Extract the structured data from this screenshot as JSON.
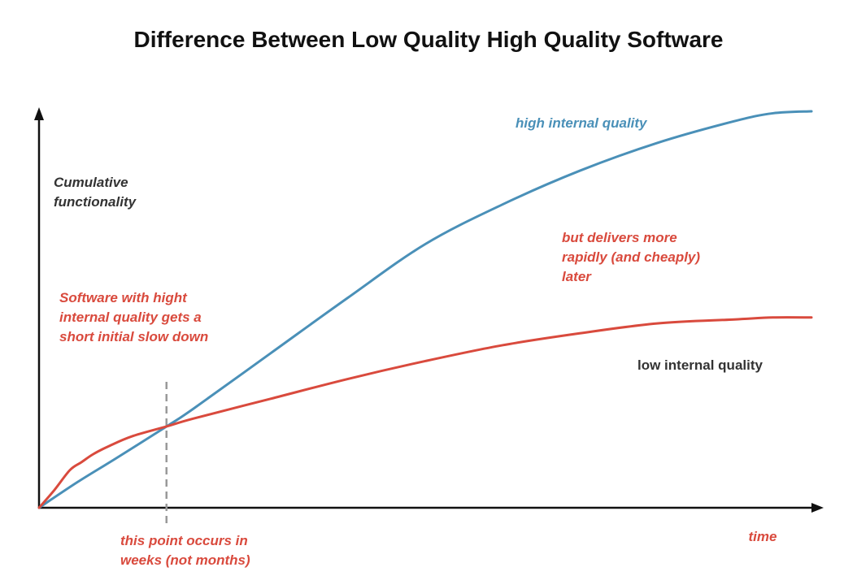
{
  "chart_data": {
    "type": "line",
    "title": "Difference Between Low Quality High Quality Software",
    "xlabel": "time",
    "ylabel_lines": [
      "Cumulative",
      "functionality"
    ],
    "xlim": [
      0,
      100
    ],
    "ylim": [
      0,
      100
    ],
    "grid": false,
    "legend": "none",
    "colors": {
      "high": "#4a90b8",
      "low": "#d94a3d",
      "axis": "#111111",
      "dashed": "#999999",
      "title": "#111111",
      "label": "#333333"
    },
    "series": [
      {
        "key": "high",
        "x": [
          0,
          5,
          10,
          16.5,
          20,
          30,
          40,
          50,
          60,
          70,
          80,
          90,
          95,
          100
        ],
        "y": [
          0,
          6.5,
          12.5,
          20.5,
          25,
          39,
          53,
          66.5,
          76.5,
          85,
          92,
          97.5,
          99.5,
          100
        ]
      },
      {
        "key": "low",
        "x": [
          0,
          2,
          4,
          5.5,
          7,
          9,
          12,
          16.5,
          20,
          30,
          40,
          50,
          60,
          70,
          80,
          90,
          95,
          100
        ],
        "y": [
          0,
          4.5,
          9.5,
          11.5,
          13.5,
          15.5,
          18,
          20.5,
          22.5,
          27.5,
          32.5,
          37,
          41,
          44,
          46.5,
          47.5,
          48,
          48
        ]
      }
    ],
    "crossover_x": 16.5,
    "annotations": {
      "series_high_label": "high internal quality",
      "series_low_label": "low internal quality",
      "slowdown_note": [
        "Software with hight",
        "internal quality gets a",
        "short initial slow down"
      ],
      "delivers_note": [
        "but delivers more",
        "rapidly (and cheaply)",
        "later"
      ],
      "crossover_note": [
        "this point occurs in",
        "weeks (not months)"
      ]
    }
  }
}
